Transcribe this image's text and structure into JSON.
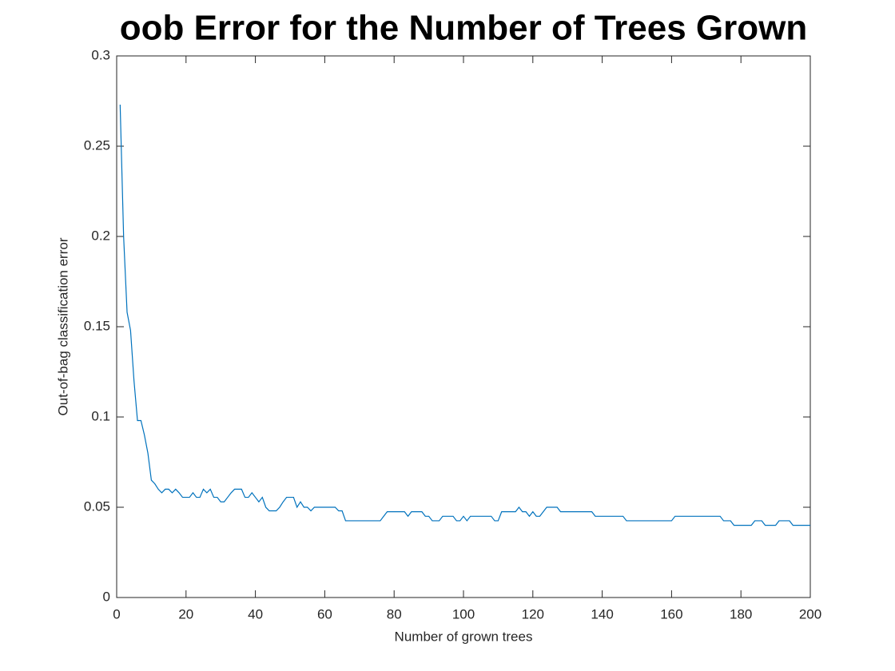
{
  "chart_data": {
    "type": "line",
    "title": "oob Error for the Number of Trees Grown",
    "xlabel": "Number of grown trees",
    "ylabel": "Out-of-bag classification error",
    "x": [
      1,
      2,
      3,
      4,
      5,
      6,
      7,
      8,
      9,
      10,
      11,
      12,
      13,
      14,
      15,
      16,
      17,
      18,
      19,
      20,
      21,
      22,
      23,
      24,
      25,
      26,
      27,
      28,
      29,
      30,
      31,
      32,
      33,
      34,
      35,
      36,
      37,
      38,
      39,
      40,
      41,
      42,
      43,
      44,
      45,
      46,
      47,
      48,
      49,
      50,
      51,
      52,
      53,
      54,
      55,
      56,
      57,
      58,
      59,
      60,
      61,
      62,
      63,
      64,
      65,
      66,
      67,
      68,
      69,
      70,
      71,
      72,
      73,
      74,
      75,
      76,
      77,
      78,
      79,
      80,
      81,
      82,
      83,
      84,
      85,
      86,
      87,
      88,
      89,
      90,
      91,
      92,
      93,
      94,
      95,
      96,
      97,
      98,
      99,
      100,
      101,
      102,
      103,
      104,
      105,
      106,
      107,
      108,
      109,
      110,
      111,
      112,
      113,
      114,
      115,
      116,
      117,
      118,
      119,
      120,
      121,
      122,
      123,
      124,
      125,
      126,
      127,
      128,
      129,
      130,
      131,
      132,
      133,
      134,
      135,
      136,
      137,
      138,
      139,
      140,
      141,
      142,
      143,
      144,
      145,
      146,
      147,
      148,
      149,
      150,
      151,
      152,
      153,
      154,
      155,
      156,
      157,
      158,
      159,
      160,
      161,
      162,
      163,
      164,
      165,
      166,
      167,
      168,
      169,
      170,
      171,
      172,
      173,
      174,
      175,
      176,
      177,
      178,
      179,
      180,
      181,
      182,
      183,
      184,
      185,
      186,
      187,
      188,
      189,
      190,
      191,
      192,
      193,
      194,
      195,
      196,
      197,
      198,
      199,
      200
    ],
    "series": [
      {
        "color": "#0072bd",
        "values": [
          0.273,
          0.2,
          0.158,
          0.148,
          0.12,
          0.098,
          0.098,
          0.09,
          0.08,
          0.065,
          0.063,
          0.06,
          0.058,
          0.06,
          0.06,
          0.058,
          0.06,
          0.058,
          0.0555,
          0.0555,
          0.0555,
          0.058,
          0.0555,
          0.0555,
          0.06,
          0.058,
          0.06,
          0.0555,
          0.0555,
          0.053,
          0.053,
          0.0555,
          0.058,
          0.06,
          0.06,
          0.06,
          0.0555,
          0.0555,
          0.058,
          0.0555,
          0.053,
          0.0555,
          0.05,
          0.048,
          0.048,
          0.048,
          0.05,
          0.053,
          0.0555,
          0.0555,
          0.0555,
          0.05,
          0.053,
          0.05,
          0.05,
          0.048,
          0.05,
          0.05,
          0.05,
          0.05,
          0.05,
          0.05,
          0.05,
          0.048,
          0.048,
          0.0425,
          0.0425,
          0.0425,
          0.0425,
          0.0425,
          0.0425,
          0.0425,
          0.0425,
          0.0425,
          0.0425,
          0.0425,
          0.045,
          0.0475,
          0.0475,
          0.0475,
          0.0475,
          0.0475,
          0.0475,
          0.045,
          0.0475,
          0.0475,
          0.0475,
          0.0475,
          0.045,
          0.045,
          0.0425,
          0.0425,
          0.0425,
          0.045,
          0.045,
          0.045,
          0.045,
          0.0425,
          0.0425,
          0.045,
          0.0425,
          0.045,
          0.045,
          0.045,
          0.045,
          0.045,
          0.045,
          0.045,
          0.0425,
          0.0425,
          0.0475,
          0.0475,
          0.0475,
          0.0475,
          0.0475,
          0.05,
          0.0475,
          0.0475,
          0.045,
          0.0475,
          0.045,
          0.045,
          0.0475,
          0.05,
          0.05,
          0.05,
          0.05,
          0.0475,
          0.0475,
          0.0475,
          0.0475,
          0.0475,
          0.0475,
          0.0475,
          0.0475,
          0.0475,
          0.0475,
          0.045,
          0.045,
          0.045,
          0.045,
          0.045,
          0.045,
          0.045,
          0.045,
          0.045,
          0.0425,
          0.0425,
          0.0425,
          0.0425,
          0.0425,
          0.0425,
          0.0425,
          0.0425,
          0.0425,
          0.0425,
          0.0425,
          0.0425,
          0.0425,
          0.0425,
          0.045,
          0.045,
          0.045,
          0.045,
          0.045,
          0.045,
          0.045,
          0.045,
          0.045,
          0.045,
          0.045,
          0.045,
          0.045,
          0.045,
          0.0425,
          0.0425,
          0.0425,
          0.04,
          0.04,
          0.04,
          0.04,
          0.04,
          0.04,
          0.0425,
          0.0425,
          0.0425,
          0.04,
          0.04,
          0.04,
          0.04,
          0.0425,
          0.0425,
          0.0425,
          0.0425,
          0.04,
          0.04,
          0.04,
          0.04,
          0.04,
          0.04
        ]
      }
    ],
    "xlim": [
      0,
      200
    ],
    "xticks": [
      0,
      20,
      40,
      60,
      80,
      100,
      120,
      140,
      160,
      180,
      200
    ],
    "ylim": [
      0,
      0.3
    ],
    "yticks": [
      0,
      0.05,
      0.1,
      0.15,
      0.2,
      0.25,
      0.3
    ]
  }
}
